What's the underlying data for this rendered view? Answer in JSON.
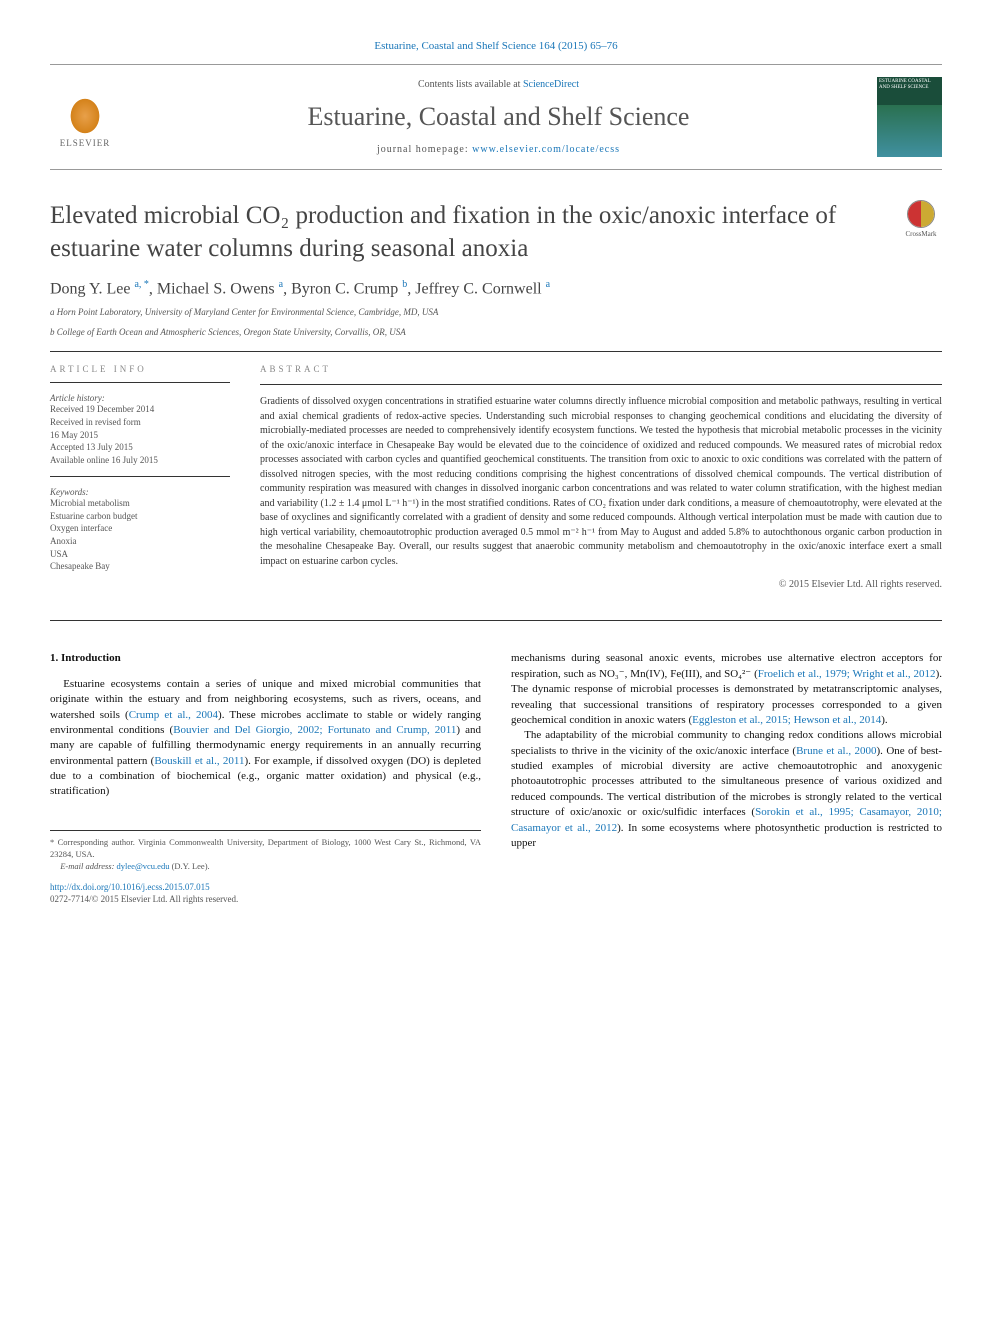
{
  "topbar": {
    "citation": "Estuarine, Coastal and Shelf Science 164 (2015) 65–76"
  },
  "header": {
    "contents_prefix": "Contents lists available at ",
    "contents_link": "ScienceDirect",
    "journal_name": "Estuarine, Coastal and Shelf Science",
    "homepage_prefix": "journal homepage: ",
    "homepage_url": "www.elsevier.com/locate/ecss",
    "elsevier_label": "ELSEVIER",
    "cover_text": "ESTUARINE COASTAL AND SHELF SCIENCE"
  },
  "crossmark": {
    "label": "CrossMark"
  },
  "title": "Elevated microbial CO₂ production and fixation in the oxic/anoxic interface of estuarine water columns during seasonal anoxia",
  "authors_html": "Dong Y. Lee <sup>a, *</sup>, Michael S. Owens <sup>a</sup>, Byron C. Crump <sup>b</sup>, Jeffrey C. Cornwell <sup>a</sup>",
  "affiliations": [
    "a Horn Point Laboratory, University of Maryland Center for Environmental Science, Cambridge, MD, USA",
    "b College of Earth Ocean and Atmospheric Sciences, Oregon State University, Corvallis, OR, USA"
  ],
  "article_info": {
    "heading": "ARTICLE INFO",
    "history_label": "Article history:",
    "history": [
      "Received 19 December 2014",
      "Received in revised form",
      "16 May 2015",
      "Accepted 13 July 2015",
      "Available online 16 July 2015"
    ],
    "keywords_label": "Keywords:",
    "keywords": [
      "Microbial metabolism",
      "Estuarine carbon budget",
      "Oxygen interface",
      "Anoxia",
      "USA",
      "Chesapeake Bay"
    ]
  },
  "abstract": {
    "heading": "ABSTRACT",
    "text": "Gradients of dissolved oxygen concentrations in stratified estuarine water columns directly influence microbial composition and metabolic pathways, resulting in vertical and axial chemical gradients of redox-active species. Understanding such microbial responses to changing geochemical conditions and elucidating the diversity of microbially-mediated processes are needed to comprehensively identify ecosystem functions. We tested the hypothesis that microbial metabolic processes in the vicinity of the oxic/anoxic interface in Chesapeake Bay would be elevated due to the coincidence of oxidized and reduced compounds. We measured rates of microbial redox processes associated with carbon cycles and quantified geochemical constituents. The transition from oxic to anoxic to oxic conditions was correlated with the pattern of dissolved nitrogen species, with the most reducing conditions comprising the highest concentrations of dissolved chemical compounds. The vertical distribution of community respiration was measured with changes in dissolved inorganic carbon concentrations and was related to water column stratification, with the highest median and variability (1.2 ± 1.4 μmol L⁻¹ h⁻¹) in the most stratified conditions. Rates of CO₂ fixation under dark conditions, a measure of chemoautotrophy, were elevated at the base of oxyclines and significantly correlated with a gradient of density and some reduced compounds. Although vertical interpolation must be made with caution due to high vertical variability, chemoautotrophic production averaged 0.5 mmol m⁻² h⁻¹ from May to August and added 5.8% to autochthonous organic carbon production in the mesohaline Chesapeake Bay. Overall, our results suggest that anaerobic community metabolism and chemoautotrophy in the oxic/anoxic interface exert a small impact on estuarine carbon cycles.",
    "copyright": "© 2015 Elsevier Ltd. All rights reserved."
  },
  "intro": {
    "heading": "1. Introduction",
    "col1": {
      "p1_pre": "Estuarine ecosystems contain a series of unique and mixed microbial communities that originate within the estuary and from neighboring ecosystems, such as rivers, oceans, and watershed soils (",
      "p1_link1": "Crump et al., 2004",
      "p1_mid1": "). These microbes acclimate to stable or widely ranging environmental conditions (",
      "p1_link2": "Bouvier and Del Giorgio, 2002; Fortunato and Crump, 2011",
      "p1_mid2": ") and many are capable of fulfilling thermodynamic energy requirements in an annually recurring environmental pattern (",
      "p1_link3": "Bouskill et al., 2011",
      "p1_post": "). For example, if dissolved oxygen (DO) is depleted due to a combination of biochemical (e.g., organic matter oxidation) and physical (e.g., stratification)"
    },
    "col2": {
      "p1_pre": "mechanisms during seasonal anoxic events, microbes use alternative electron acceptors for respiration, such as NO₃⁻, Mn(IV), Fe(III), and SO₄²⁻ (",
      "p1_link1": "Froelich et al., 1979; Wright et al., 2012",
      "p1_mid1": "). The dynamic response of microbial processes is demonstrated by metatranscriptomic analyses, revealing that successional transitions of respiratory processes corresponded to a given geochemical condition in anoxic waters (",
      "p1_link2": "Eggleston et al., 2015; Hewson et al., 2014",
      "p1_post": ").",
      "p2_pre": "The adaptability of the microbial community to changing redox conditions allows microbial specialists to thrive in the vicinity of the oxic/anoxic interface (",
      "p2_link1": "Brune et al., 2000",
      "p2_mid1": "). One of best-studied examples of microbial diversity are active chemoautotrophic and anoxygenic photoautotrophic processes attributed to the simultaneous presence of various oxidized and reduced compounds. The vertical distribution of the microbes is strongly related to the vertical structure of oxic/anoxic or oxic/sulfidic interfaces (",
      "p2_link2": "Sorokin et al., 1995; Casamayor, 2010; Casamayor et al., 2012",
      "p2_post": "). In some ecosystems where photosynthetic production is restricted to upper"
    }
  },
  "footnote": {
    "corr": "* Corresponding author. Virginia Commonwealth University, Department of Biology, 1000 West Cary St., Richmond, VA 23284, USA.",
    "email_label": "E-mail address: ",
    "email": "dylee@vcu.edu",
    "email_who": " (D.Y. Lee)."
  },
  "doi": {
    "url": "http://dx.doi.org/10.1016/j.ecss.2015.07.015",
    "issn_line": "0272-7714/© 2015 Elsevier Ltd. All rights reserved."
  },
  "colors": {
    "link": "#1976b8",
    "text": "#333333",
    "muted": "#555555"
  }
}
